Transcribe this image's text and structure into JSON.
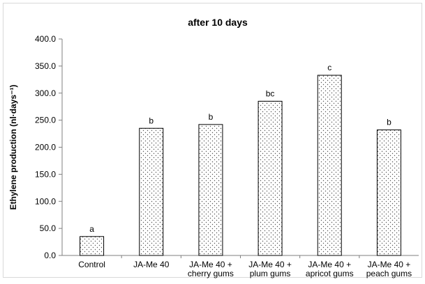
{
  "chart_data": {
    "type": "bar",
    "title": "after 10 days",
    "xlabel": "",
    "ylabel": "Ethylene production (nl·days⁻¹)",
    "ylim": [
      0,
      400
    ],
    "ytick_step": 50,
    "ytick_labels": [
      "0.0",
      "50.0",
      "100.0",
      "150.0",
      "200.0",
      "250.0",
      "300.0",
      "350.0",
      "400.0"
    ],
    "grid": false,
    "legend": "none",
    "categories": [
      [
        "Control"
      ],
      [
        "JA-Me 40"
      ],
      [
        "JA-Me  40 +",
        "cherry gums"
      ],
      [
        "JA-Me 40 +",
        "plum gums"
      ],
      [
        "JA-Me 40 +",
        "apricot gums"
      ],
      [
        "JA-Me 40 +",
        "peach gums"
      ]
    ],
    "values": [
      35,
      235,
      242,
      285,
      333,
      232
    ],
    "significance_labels": [
      "a",
      "b",
      "b",
      "bc",
      "c",
      "b"
    ],
    "bar_fill": "dotted",
    "colors": {
      "bar_stroke": "#000000",
      "bar_dots": "#555555",
      "axis": "#7f7f7f"
    }
  }
}
